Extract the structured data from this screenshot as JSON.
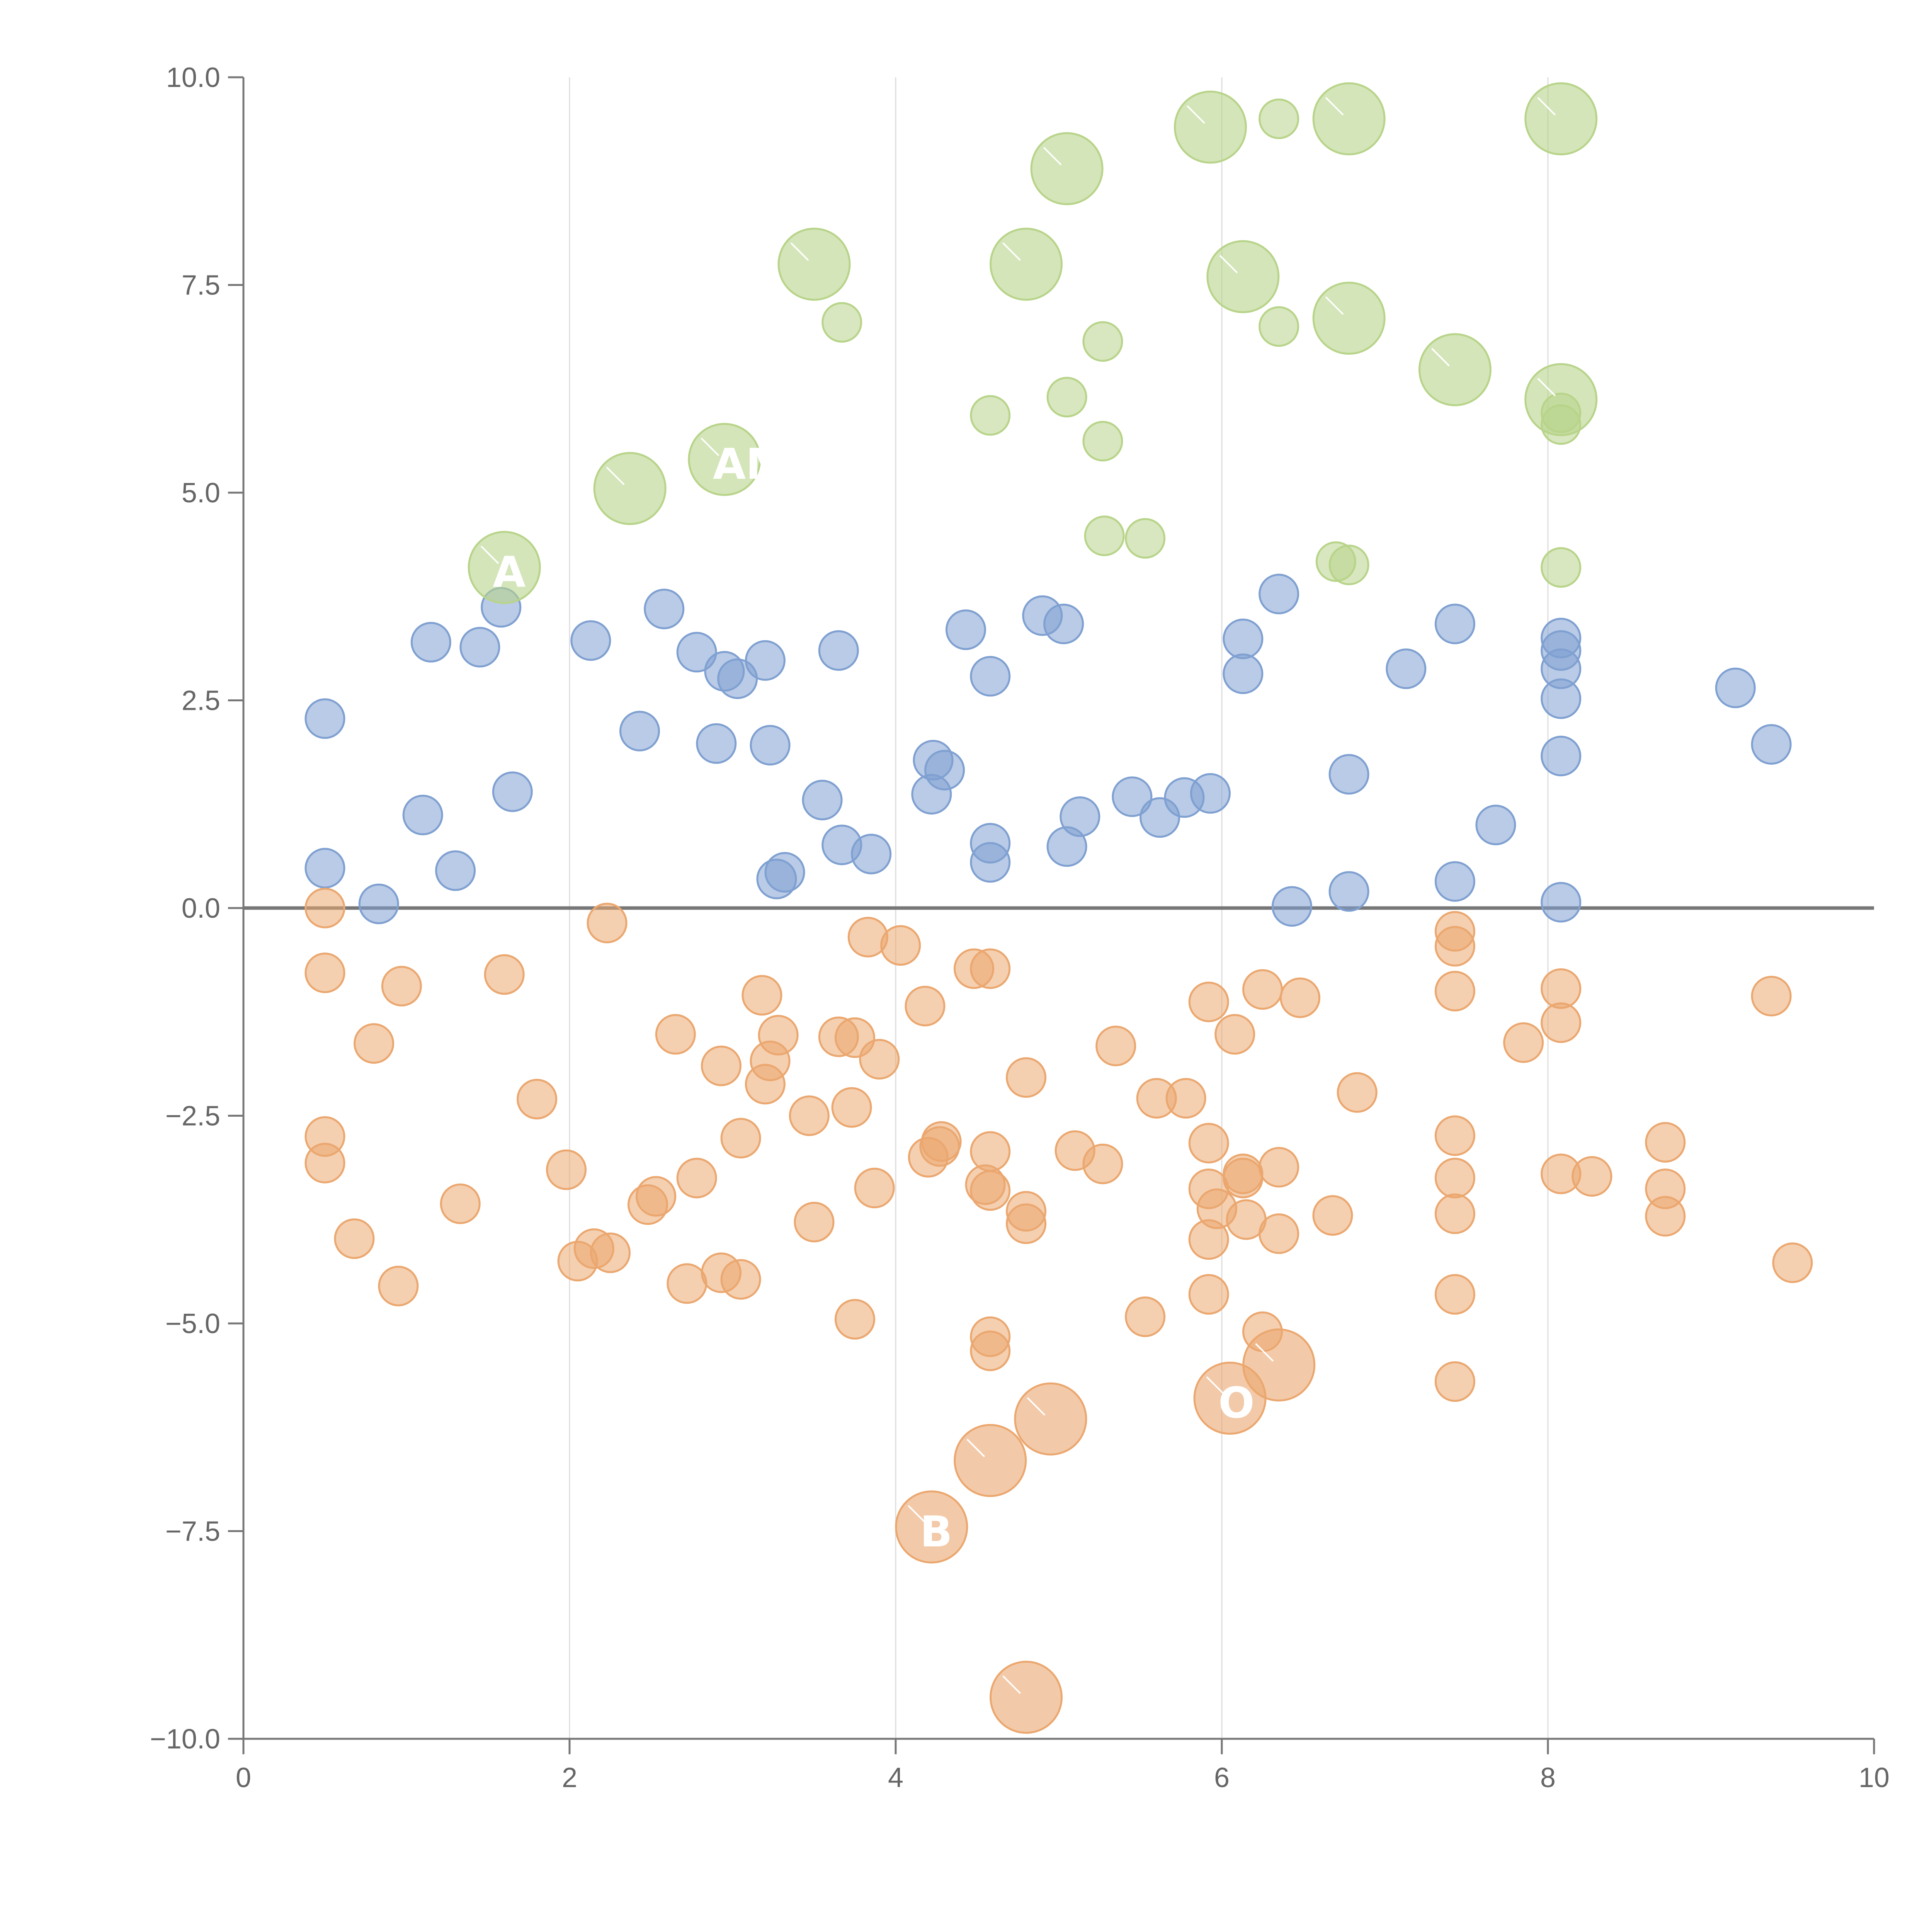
{
  "chart_data": {
    "type": "scatter",
    "title": "",
    "xlabel": "",
    "ylabel": "",
    "xlim": [
      0,
      10
    ],
    "ylim": [
      -10,
      10
    ],
    "x_ticks": [
      "0",
      "2",
      "4",
      "6",
      "8",
      "10"
    ],
    "y_ticks": [
      "10.0",
      "7.5",
      "5.0",
      "2.5",
      "0.0",
      "−2.5",
      "−5.0",
      "−7.5",
      "−10.0"
    ],
    "x_tick_values": [
      0,
      2,
      4,
      6,
      8,
      10
    ],
    "y_tick_values": [
      10,
      7.5,
      5,
      2.5,
      0,
      -2.5,
      -5,
      -7.5,
      -10
    ],
    "grid": "vertical",
    "zero_line": true,
    "colors": {
      "blue": "#7fa0d1",
      "orange": "#eba76f",
      "green": "#b8d48a"
    },
    "series": [
      {
        "color": "#7fa0d1",
        "points": [
          [
            0.5,
            2.28
          ],
          [
            0.5,
            0.48
          ],
          [
            0.83,
            0.05
          ],
          [
            1.1,
            1.12
          ],
          [
            1.15,
            3.2
          ],
          [
            1.3,
            0.45
          ],
          [
            1.45,
            3.14
          ],
          [
            1.58,
            3.62
          ],
          [
            1.65,
            1.4
          ],
          [
            2.13,
            3.22
          ],
          [
            2.43,
            2.13
          ],
          [
            2.58,
            3.6
          ],
          [
            2.78,
            3.08
          ],
          [
            2.9,
            1.98
          ],
          [
            2.95,
            2.85
          ],
          [
            3.03,
            2.76
          ],
          [
            3.2,
            2.98
          ],
          [
            3.23,
            1.96
          ],
          [
            3.27,
            0.35
          ],
          [
            3.32,
            0.43
          ],
          [
            3.55,
            1.3
          ],
          [
            3.65,
            3.1
          ],
          [
            3.67,
            0.76
          ],
          [
            3.85,
            0.65
          ],
          [
            4.22,
            1.37
          ],
          [
            4.23,
            1.78
          ],
          [
            4.3,
            1.66
          ],
          [
            4.43,
            3.35
          ],
          [
            4.58,
            2.79
          ],
          [
            4.58,
            0.78
          ],
          [
            4.58,
            0.55
          ],
          [
            4.9,
            3.52
          ],
          [
            5.03,
            3.42
          ],
          [
            5.05,
            0.74
          ],
          [
            5.13,
            1.1
          ],
          [
            5.45,
            1.34
          ],
          [
            5.62,
            1.09
          ],
          [
            5.77,
            1.33
          ],
          [
            5.93,
            1.38
          ],
          [
            6.13,
            3.24
          ],
          [
            6.13,
            2.82
          ],
          [
            6.35,
            3.78
          ],
          [
            6.43,
            0.02
          ],
          [
            6.78,
            1.61
          ],
          [
            6.78,
            0.2
          ],
          [
            7.13,
            2.88
          ],
          [
            7.43,
            3.42
          ],
          [
            7.43,
            0.32
          ],
          [
            7.68,
            1.0
          ],
          [
            8.08,
            3.25
          ],
          [
            8.08,
            3.1
          ],
          [
            8.08,
            2.88
          ],
          [
            8.08,
            2.52
          ],
          [
            8.08,
            1.83
          ],
          [
            8.08,
            0.07
          ],
          [
            9.15,
            2.65
          ],
          [
            9.37,
            1.97
          ]
        ]
      },
      {
        "color": "#eba76f",
        "points": [
          [
            0.5,
            0.0
          ],
          [
            0.5,
            -0.78
          ],
          [
            0.5,
            -2.75
          ],
          [
            0.5,
            -3.07
          ],
          [
            0.68,
            -3.98
          ],
          [
            0.8,
            -1.63
          ],
          [
            0.95,
            -4.55
          ],
          [
            0.97,
            -0.94
          ],
          [
            1.33,
            -3.56
          ],
          [
            1.6,
            -0.8
          ],
          [
            1.8,
            -2.3
          ],
          [
            1.98,
            -3.15
          ],
          [
            2.05,
            -4.25
          ],
          [
            2.15,
            -4.1
          ],
          [
            2.25,
            -4.15
          ],
          [
            2.23,
            -0.18
          ],
          [
            2.48,
            -3.57
          ],
          [
            2.53,
            -3.47
          ],
          [
            2.65,
            -1.52
          ],
          [
            2.72,
            -4.52
          ],
          [
            2.78,
            -3.25
          ],
          [
            2.93,
            -1.9
          ],
          [
            2.93,
            -4.39
          ],
          [
            3.05,
            -4.47
          ],
          [
            3.05,
            -2.77
          ],
          [
            3.18,
            -1.05
          ],
          [
            3.2,
            -2.12
          ],
          [
            3.23,
            -1.84
          ],
          [
            3.28,
            -1.53
          ],
          [
            3.47,
            -2.5
          ],
          [
            3.5,
            -3.78
          ],
          [
            3.65,
            -1.55
          ],
          [
            3.73,
            -2.4
          ],
          [
            3.75,
            -1.56
          ],
          [
            3.75,
            -4.95
          ],
          [
            3.83,
            -0.35
          ],
          [
            3.87,
            -3.37
          ],
          [
            3.9,
            -1.82
          ],
          [
            4.03,
            -0.45
          ],
          [
            4.18,
            -1.18
          ],
          [
            4.2,
            -3.0
          ],
          [
            4.27,
            -2.87
          ],
          [
            4.28,
            -2.81
          ],
          [
            4.48,
            -0.73
          ],
          [
            4.55,
            -3.33
          ],
          [
            4.58,
            -0.73
          ],
          [
            4.58,
            -2.93
          ],
          [
            4.58,
            -3.4
          ],
          [
            4.58,
            -5.16
          ],
          [
            4.58,
            -5.33
          ],
          [
            4.8,
            -2.04
          ],
          [
            4.8,
            -3.65
          ],
          [
            4.8,
            -3.8
          ],
          [
            5.1,
            -2.92
          ],
          [
            5.27,
            -3.08
          ],
          [
            5.35,
            -1.66
          ],
          [
            5.53,
            -4.92
          ],
          [
            5.6,
            -2.29
          ],
          [
            5.78,
            -2.29
          ],
          [
            5.92,
            -1.13
          ],
          [
            5.92,
            -2.83
          ],
          [
            5.92,
            -3.38
          ],
          [
            5.92,
            -3.99
          ],
          [
            5.92,
            -4.65
          ],
          [
            5.97,
            -3.62
          ],
          [
            6.08,
            -1.52
          ],
          [
            6.13,
            -3.2
          ],
          [
            6.13,
            -3.25
          ],
          [
            6.15,
            -3.75
          ],
          [
            6.25,
            -0.98
          ],
          [
            6.25,
            -5.1
          ],
          [
            6.35,
            -3.12
          ],
          [
            6.35,
            -3.92
          ],
          [
            6.48,
            -1.08
          ],
          [
            6.68,
            -3.7
          ],
          [
            6.83,
            -2.22
          ],
          [
            7.43,
            -0.28
          ],
          [
            7.43,
            -0.46
          ],
          [
            7.43,
            -1.0
          ],
          [
            7.43,
            -2.74
          ],
          [
            7.43,
            -3.25
          ],
          [
            7.43,
            -3.68
          ],
          [
            7.43,
            -4.65
          ],
          [
            7.43,
            -5.7
          ],
          [
            7.85,
            -1.62
          ],
          [
            8.08,
            -0.97
          ],
          [
            8.08,
            -1.38
          ],
          [
            8.08,
            -3.2
          ],
          [
            8.27,
            -3.23
          ],
          [
            8.72,
            -2.82
          ],
          [
            8.72,
            -3.38
          ],
          [
            8.72,
            -3.71
          ],
          [
            9.37,
            -1.06
          ],
          [
            9.5,
            -4.27
          ]
        ]
      },
      {
        "color": "#b8d48a",
        "points": [
          [
            3.67,
            7.05
          ],
          [
            4.58,
            5.93
          ],
          [
            5.05,
            6.15
          ],
          [
            5.27,
            6.82
          ],
          [
            5.27,
            5.62
          ],
          [
            5.28,
            4.48
          ],
          [
            5.53,
            4.45
          ],
          [
            6.35,
            9.5
          ],
          [
            6.35,
            7.0
          ],
          [
            6.7,
            4.17
          ],
          [
            6.78,
            4.13
          ],
          [
            8.08,
            5.96
          ],
          [
            8.08,
            5.82
          ],
          [
            8.08,
            4.1
          ]
        ]
      }
    ],
    "highlighted_points": [
      {
        "color": "#b8d48a",
        "x": 1.6,
        "y": 4.1,
        "label": "A"
      },
      {
        "color": "#b8d48a",
        "x": 2.37,
        "y": 5.05,
        "label": ""
      },
      {
        "color": "#b8d48a",
        "x": 2.95,
        "y": 5.4,
        "label": "AM"
      },
      {
        "color": "#b8d48a",
        "x": 3.5,
        "y": 7.75,
        "label": ""
      },
      {
        "color": "#b8d48a",
        "x": 4.8,
        "y": 7.75,
        "label": ""
      },
      {
        "color": "#b8d48a",
        "x": 5.05,
        "y": 8.9,
        "label": ""
      },
      {
        "color": "#b8d48a",
        "x": 5.93,
        "y": 9.4,
        "label": ""
      },
      {
        "color": "#b8d48a",
        "x": 6.13,
        "y": 7.6,
        "label": ""
      },
      {
        "color": "#b8d48a",
        "x": 6.78,
        "y": 9.5,
        "label": ""
      },
      {
        "color": "#b8d48a",
        "x": 6.78,
        "y": 7.1,
        "label": ""
      },
      {
        "color": "#b8d48a",
        "x": 7.43,
        "y": 6.48,
        "label": ""
      },
      {
        "color": "#b8d48a",
        "x": 8.08,
        "y": 9.5,
        "label": ""
      },
      {
        "color": "#b8d48a",
        "x": 8.08,
        "y": 6.12,
        "label": ""
      },
      {
        "color": "#eba76f",
        "x": 4.22,
        "y": -7.45,
        "label": "B"
      },
      {
        "color": "#eba76f",
        "x": 4.58,
        "y": -6.65,
        "label": ""
      },
      {
        "color": "#eba76f",
        "x": 4.8,
        "y": -9.5,
        "label": ""
      },
      {
        "color": "#eba76f",
        "x": 4.95,
        "y": -6.15,
        "label": ""
      },
      {
        "color": "#eba76f",
        "x": 6.05,
        "y": -5.9,
        "label": "O"
      },
      {
        "color": "#eba76f",
        "x": 6.35,
        "y": -5.5,
        "label": ""
      }
    ]
  }
}
